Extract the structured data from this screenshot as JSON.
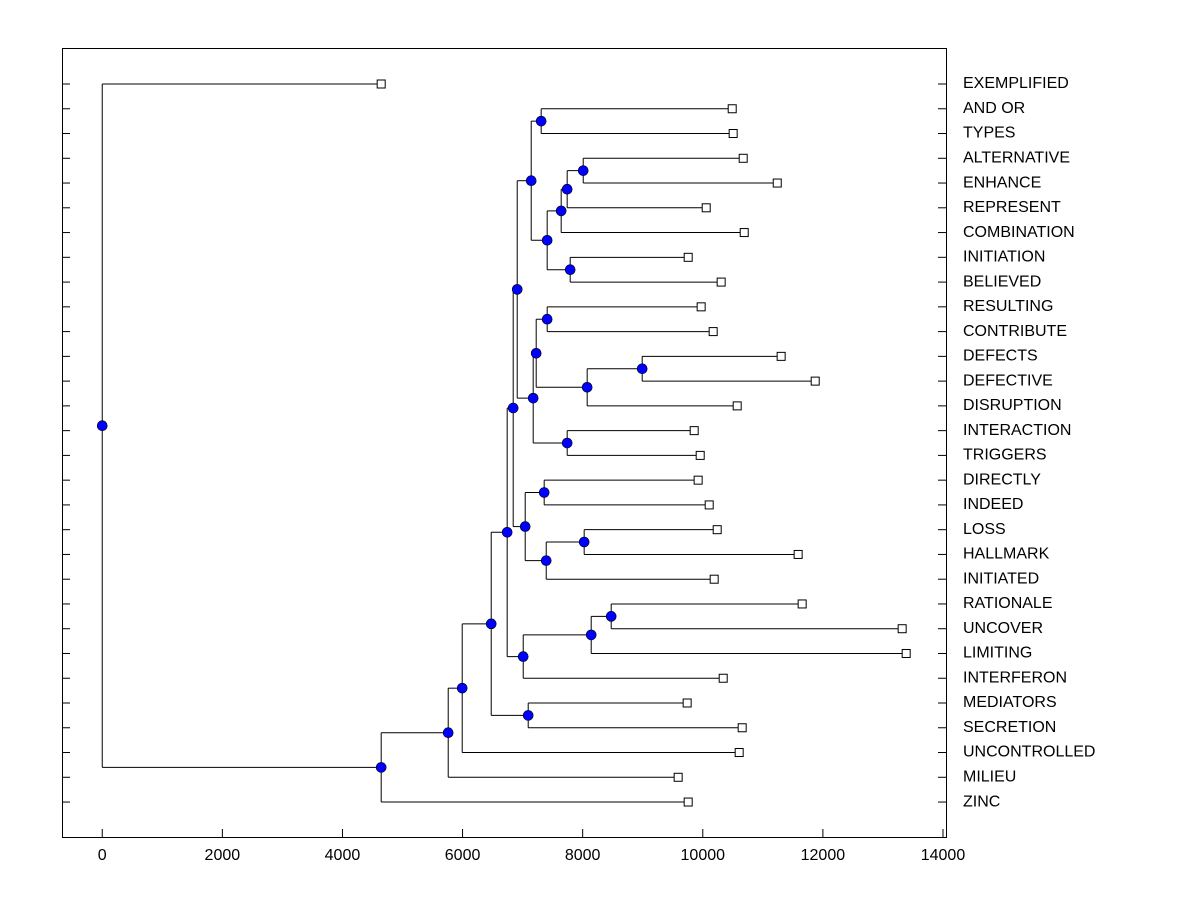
{
  "chart_data": {
    "type": "dendrogram",
    "xlim": [
      -670,
      14050
    ],
    "xticks": [
      0,
      2000,
      4000,
      6000,
      8000,
      10000,
      12000,
      14000
    ],
    "leaf_color": "#ffffff",
    "node_color": "#0000ff",
    "leaves": [
      {
        "label": "EXEMPLIFIED",
        "value": 4645
      },
      {
        "label": "AND OR",
        "value": 10490
      },
      {
        "label": "TYPES",
        "value": 10506
      },
      {
        "label": "ALTERNATIVE",
        "value": 10673
      },
      {
        "label": "ENHANCE",
        "value": 11240
      },
      {
        "label": "REPRESENT",
        "value": 10057
      },
      {
        "label": "COMBINATION",
        "value": 10690
      },
      {
        "label": "INITIATION",
        "value": 9757
      },
      {
        "label": "BELIEVED",
        "value": 10306
      },
      {
        "label": "RESULTING",
        "value": 9973
      },
      {
        "label": "CONTRIBUTE",
        "value": 10173
      },
      {
        "label": "DEFECTS",
        "value": 11305
      },
      {
        "label": "DEFECTIVE",
        "value": 11872
      },
      {
        "label": "DISRUPTION",
        "value": 10573
      },
      {
        "label": "INTERACTION",
        "value": 9857
      },
      {
        "label": "TRIGGERS",
        "value": 9957
      },
      {
        "label": "DIRECTLY",
        "value": 9923
      },
      {
        "label": "INDEED",
        "value": 10107
      },
      {
        "label": "LOSS",
        "value": 10240
      },
      {
        "label": "HALLMARK",
        "value": 11588
      },
      {
        "label": "INITIATED",
        "value": 10190
      },
      {
        "label": "RATIONALE",
        "value": 11655
      },
      {
        "label": "UNCOVER",
        "value": 13320
      },
      {
        "label": "LIMITING",
        "value": 13387
      },
      {
        "label": "INTERFERON",
        "value": 10340
      },
      {
        "label": "MEDIATORS",
        "value": 9740
      },
      {
        "label": "SECRETION",
        "value": 10656
      },
      {
        "label": "UNCONTROLLED",
        "value": 10606
      },
      {
        "label": "MILIEU",
        "value": 9590
      },
      {
        "label": "ZINC",
        "value": 9757
      }
    ],
    "nodes": [
      {
        "value": 7309,
        "children": [
          1,
          2
        ]
      },
      {
        "value": 8009,
        "children": [
          3,
          4
        ]
      },
      {
        "value": 7742,
        "children": [
          31,
          5
        ]
      },
      {
        "value": 7642,
        "children": [
          32,
          6
        ]
      },
      {
        "value": 7792,
        "children": [
          7,
          8
        ]
      },
      {
        "value": 7409,
        "children": [
          33,
          34
        ]
      },
      {
        "value": 7143,
        "children": [
          30,
          35
        ]
      },
      {
        "value": 7409,
        "children": [
          9,
          10
        ]
      },
      {
        "value": 8991,
        "children": [
          11,
          12
        ]
      },
      {
        "value": 8075,
        "children": [
          38,
          13
        ]
      },
      {
        "value": 7226,
        "children": [
          37,
          39
        ]
      },
      {
        "value": 7742,
        "children": [
          14,
          15
        ]
      },
      {
        "value": 7176,
        "children": [
          40,
          41
        ]
      },
      {
        "value": 6910,
        "children": [
          36,
          42
        ]
      },
      {
        "value": 7359,
        "children": [
          16,
          17
        ]
      },
      {
        "value": 8025,
        "children": [
          18,
          19
        ]
      },
      {
        "value": 7393,
        "children": [
          45,
          20
        ]
      },
      {
        "value": 7043,
        "children": [
          44,
          46
        ]
      },
      {
        "value": 6843,
        "children": [
          43,
          47
        ]
      },
      {
        "value": 8475,
        "children": [
          21,
          22
        ]
      },
      {
        "value": 8142,
        "children": [
          49,
          23
        ]
      },
      {
        "value": 7010,
        "children": [
          50,
          24
        ]
      },
      {
        "value": 6743,
        "children": [
          48,
          51
        ]
      },
      {
        "value": 7093,
        "children": [
          25,
          26
        ]
      },
      {
        "value": 6477,
        "children": [
          52,
          53
        ]
      },
      {
        "value": 5994,
        "children": [
          54,
          27
        ]
      },
      {
        "value": 5761,
        "children": [
          55,
          28
        ]
      },
      {
        "value": 4645,
        "children": [
          56,
          29
        ]
      },
      {
        "value": 0,
        "children": [
          0,
          57
        ]
      }
    ]
  }
}
